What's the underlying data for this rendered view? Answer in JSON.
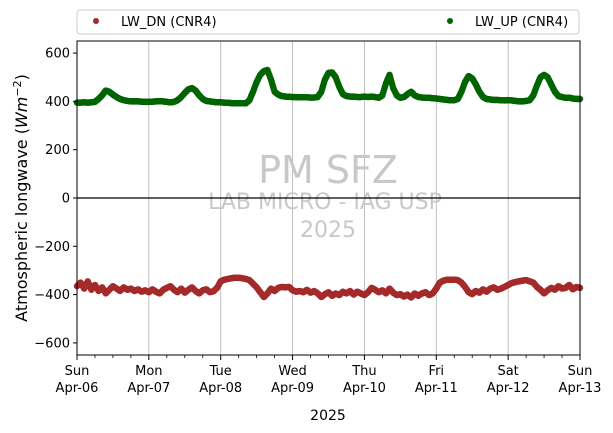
{
  "chart_data": {
    "type": "scatter",
    "ylabel": "Atmospheric longwave",
    "ylabel_unit_base": "W",
    "ylabel_unit_m": "m",
    "ylabel_unit_exp": "−2",
    "xlabel": "2025",
    "ylim": [
      -650,
      650
    ],
    "yticks": [
      600,
      400,
      200,
      0,
      -200,
      -400,
      -600
    ],
    "xlim": [
      0,
      7
    ],
    "xticks": [
      {
        "x": 0,
        "day": "Sun",
        "date": "Apr-06"
      },
      {
        "x": 1,
        "day": "Mon",
        "date": "Apr-07"
      },
      {
        "x": 2,
        "day": "Tue",
        "date": "Apr-08"
      },
      {
        "x": 3,
        "day": "Wed",
        "date": "Apr-09"
      },
      {
        "x": 4,
        "day": "Thu",
        "date": "Apr-10"
      },
      {
        "x": 5,
        "day": "Fri",
        "date": "Apr-11"
      },
      {
        "x": 6,
        "day": "Sat",
        "date": "Apr-12"
      },
      {
        "x": 7,
        "day": "Sun",
        "date": "Apr-13"
      }
    ],
    "grid": "vertical",
    "legend_placement": "top, above plot",
    "zero_line": true,
    "watermark": {
      "line1": "PM SFZ",
      "line2": "LAB MICRO - IAG USP",
      "line3": "2025"
    },
    "series": [
      {
        "name": "LW_DN (CNR4)",
        "color": "#a52a2a",
        "points": [
          [
            0.0,
            -365
          ],
          [
            0.05,
            -350
          ],
          [
            0.1,
            -375
          ],
          [
            0.15,
            -345
          ],
          [
            0.2,
            -380
          ],
          [
            0.25,
            -360
          ],
          [
            0.3,
            -385
          ],
          [
            0.35,
            -370
          ],
          [
            0.4,
            -395
          ],
          [
            0.45,
            -380
          ],
          [
            0.5,
            -365
          ],
          [
            0.55,
            -375
          ],
          [
            0.6,
            -385
          ],
          [
            0.65,
            -370
          ],
          [
            0.7,
            -380
          ],
          [
            0.75,
            -375
          ],
          [
            0.8,
            -385
          ],
          [
            0.85,
            -378
          ],
          [
            0.9,
            -388
          ],
          [
            0.95,
            -382
          ],
          [
            1.0,
            -390
          ],
          [
            1.05,
            -378
          ],
          [
            1.1,
            -388
          ],
          [
            1.15,
            -395
          ],
          [
            1.2,
            -380
          ],
          [
            1.25,
            -372
          ],
          [
            1.3,
            -365
          ],
          [
            1.35,
            -380
          ],
          [
            1.4,
            -390
          ],
          [
            1.45,
            -375
          ],
          [
            1.5,
            -392
          ],
          [
            1.55,
            -380
          ],
          [
            1.6,
            -370
          ],
          [
            1.65,
            -385
          ],
          [
            1.7,
            -395
          ],
          [
            1.75,
            -382
          ],
          [
            1.8,
            -378
          ],
          [
            1.85,
            -390
          ],
          [
            1.9,
            -386
          ],
          [
            1.95,
            -372
          ],
          [
            2.0,
            -345
          ],
          [
            2.05,
            -338
          ],
          [
            2.1,
            -335
          ],
          [
            2.15,
            -332
          ],
          [
            2.2,
            -330
          ],
          [
            2.25,
            -330
          ],
          [
            2.3,
            -332
          ],
          [
            2.35,
            -335
          ],
          [
            2.4,
            -340
          ],
          [
            2.45,
            -355
          ],
          [
            2.5,
            -370
          ],
          [
            2.55,
            -390
          ],
          [
            2.6,
            -410
          ],
          [
            2.65,
            -395
          ],
          [
            2.7,
            -375
          ],
          [
            2.75,
            -385
          ],
          [
            2.8,
            -372
          ],
          [
            2.85,
            -368
          ],
          [
            2.9,
            -370
          ],
          [
            2.95,
            -368
          ],
          [
            3.0,
            -382
          ],
          [
            3.05,
            -388
          ],
          [
            3.1,
            -385
          ],
          [
            3.15,
            -390
          ],
          [
            3.2,
            -380
          ],
          [
            3.25,
            -392
          ],
          [
            3.3,
            -385
          ],
          [
            3.35,
            -395
          ],
          [
            3.4,
            -410
          ],
          [
            3.45,
            -398
          ],
          [
            3.5,
            -390
          ],
          [
            3.55,
            -405
          ],
          [
            3.6,
            -395
          ],
          [
            3.65,
            -402
          ],
          [
            3.7,
            -388
          ],
          [
            3.75,
            -395
          ],
          [
            3.8,
            -385
          ],
          [
            3.85,
            -400
          ],
          [
            3.9,
            -388
          ],
          [
            3.95,
            -395
          ],
          [
            4.0,
            -402
          ],
          [
            4.05,
            -390
          ],
          [
            4.1,
            -372
          ],
          [
            4.15,
            -380
          ],
          [
            4.2,
            -390
          ],
          [
            4.25,
            -382
          ],
          [
            4.3,
            -395
          ],
          [
            4.35,
            -375
          ],
          [
            4.4,
            -392
          ],
          [
            4.45,
            -402
          ],
          [
            4.5,
            -398
          ],
          [
            4.55,
            -408
          ],
          [
            4.6,
            -400
          ],
          [
            4.65,
            -412
          ],
          [
            4.7,
            -395
          ],
          [
            4.75,
            -405
          ],
          [
            4.8,
            -395
          ],
          [
            4.85,
            -390
          ],
          [
            4.9,
            -402
          ],
          [
            4.95,
            -395
          ],
          [
            5.0,
            -375
          ],
          [
            5.05,
            -350
          ],
          [
            5.1,
            -342
          ],
          [
            5.15,
            -338
          ],
          [
            5.2,
            -338
          ],
          [
            5.25,
            -338
          ],
          [
            5.3,
            -340
          ],
          [
            5.35,
            -350
          ],
          [
            5.4,
            -368
          ],
          [
            5.45,
            -390
          ],
          [
            5.5,
            -398
          ],
          [
            5.55,
            -385
          ],
          [
            5.6,
            -392
          ],
          [
            5.65,
            -378
          ],
          [
            5.7,
            -388
          ],
          [
            5.75,
            -375
          ],
          [
            5.8,
            -370
          ],
          [
            5.85,
            -380
          ],
          [
            5.9,
            -375
          ],
          [
            5.95,
            -368
          ],
          [
            6.0,
            -360
          ],
          [
            6.05,
            -352
          ],
          [
            6.1,
            -348
          ],
          [
            6.15,
            -345
          ],
          [
            6.2,
            -342
          ],
          [
            6.25,
            -340
          ],
          [
            6.3,
            -345
          ],
          [
            6.35,
            -350
          ],
          [
            6.4,
            -368
          ],
          [
            6.45,
            -380
          ],
          [
            6.5,
            -395
          ],
          [
            6.55,
            -382
          ],
          [
            6.6,
            -372
          ],
          [
            6.65,
            -380
          ],
          [
            6.7,
            -365
          ],
          [
            6.75,
            -375
          ],
          [
            6.8,
            -372
          ],
          [
            6.85,
            -360
          ],
          [
            6.9,
            -378
          ],
          [
            6.95,
            -368
          ],
          [
            7.0,
            -372
          ]
        ]
      },
      {
        "name": "LW_UP (CNR4)",
        "color": "#006400",
        "points": [
          [
            0.0,
            395
          ],
          [
            0.05,
            395
          ],
          [
            0.1,
            396
          ],
          [
            0.15,
            395
          ],
          [
            0.2,
            396
          ],
          [
            0.25,
            398
          ],
          [
            0.3,
            410
          ],
          [
            0.35,
            425
          ],
          [
            0.4,
            445
          ],
          [
            0.45,
            440
          ],
          [
            0.5,
            428
          ],
          [
            0.55,
            418
          ],
          [
            0.6,
            410
          ],
          [
            0.65,
            405
          ],
          [
            0.7,
            402
          ],
          [
            0.75,
            400
          ],
          [
            0.8,
            400
          ],
          [
            0.85,
            400
          ],
          [
            0.9,
            399
          ],
          [
            0.95,
            398
          ],
          [
            1.0,
            398
          ],
          [
            1.05,
            399
          ],
          [
            1.1,
            400
          ],
          [
            1.15,
            401
          ],
          [
            1.2,
            400
          ],
          [
            1.25,
            398
          ],
          [
            1.3,
            396
          ],
          [
            1.35,
            398
          ],
          [
            1.4,
            405
          ],
          [
            1.45,
            418
          ],
          [
            1.5,
            435
          ],
          [
            1.55,
            450
          ],
          [
            1.6,
            455
          ],
          [
            1.65,
            445
          ],
          [
            1.7,
            425
          ],
          [
            1.75,
            410
          ],
          [
            1.8,
            402
          ],
          [
            1.85,
            400
          ],
          [
            1.9,
            398
          ],
          [
            1.95,
            396
          ],
          [
            2.0,
            396
          ],
          [
            2.05,
            395
          ],
          [
            2.1,
            394
          ],
          [
            2.15,
            393
          ],
          [
            2.2,
            392
          ],
          [
            2.25,
            392
          ],
          [
            2.3,
            392
          ],
          [
            2.35,
            392
          ],
          [
            2.4,
            405
          ],
          [
            2.45,
            440
          ],
          [
            2.5,
            480
          ],
          [
            2.55,
            510
          ],
          [
            2.6,
            525
          ],
          [
            2.65,
            530
          ],
          [
            2.7,
            490
          ],
          [
            2.75,
            440
          ],
          [
            2.8,
            428
          ],
          [
            2.85,
            422
          ],
          [
            2.9,
            420
          ],
          [
            2.95,
            419
          ],
          [
            3.0,
            418
          ],
          [
            3.05,
            418
          ],
          [
            3.1,
            417
          ],
          [
            3.15,
            417
          ],
          [
            3.2,
            417
          ],
          [
            3.25,
            416
          ],
          [
            3.3,
            416
          ],
          [
            3.35,
            418
          ],
          [
            3.4,
            440
          ],
          [
            3.45,
            490
          ],
          [
            3.5,
            518
          ],
          [
            3.55,
            520
          ],
          [
            3.6,
            500
          ],
          [
            3.65,
            460
          ],
          [
            3.7,
            430
          ],
          [
            3.75,
            422
          ],
          [
            3.8,
            420
          ],
          [
            3.85,
            420
          ],
          [
            3.9,
            418
          ],
          [
            3.95,
            418
          ],
          [
            4.0,
            420
          ],
          [
            4.05,
            418
          ],
          [
            4.1,
            420
          ],
          [
            4.15,
            418
          ],
          [
            4.2,
            415
          ],
          [
            4.25,
            425
          ],
          [
            4.3,
            475
          ],
          [
            4.35,
            510
          ],
          [
            4.4,
            455
          ],
          [
            4.45,
            425
          ],
          [
            4.5,
            415
          ],
          [
            4.55,
            418
          ],
          [
            4.6,
            430
          ],
          [
            4.65,
            440
          ],
          [
            4.7,
            425
          ],
          [
            4.75,
            418
          ],
          [
            4.8,
            416
          ],
          [
            4.85,
            415
          ],
          [
            4.9,
            415
          ],
          [
            4.95,
            413
          ],
          [
            5.0,
            412
          ],
          [
            5.05,
            410
          ],
          [
            5.1,
            408
          ],
          [
            5.15,
            406
          ],
          [
            5.2,
            405
          ],
          [
            5.25,
            405
          ],
          [
            5.3,
            410
          ],
          [
            5.35,
            440
          ],
          [
            5.4,
            480
          ],
          [
            5.45,
            505
          ],
          [
            5.5,
            495
          ],
          [
            5.55,
            470
          ],
          [
            5.6,
            440
          ],
          [
            5.65,
            418
          ],
          [
            5.7,
            410
          ],
          [
            5.75,
            408
          ],
          [
            5.8,
            406
          ],
          [
            5.85,
            406
          ],
          [
            5.9,
            405
          ],
          [
            5.95,
            404
          ],
          [
            6.0,
            405
          ],
          [
            6.05,
            404
          ],
          [
            6.1,
            402
          ],
          [
            6.15,
            400
          ],
          [
            6.2,
            400
          ],
          [
            6.25,
            402
          ],
          [
            6.3,
            405
          ],
          [
            6.35,
            425
          ],
          [
            6.4,
            465
          ],
          [
            6.45,
            500
          ],
          [
            6.5,
            510
          ],
          [
            6.55,
            500
          ],
          [
            6.6,
            470
          ],
          [
            6.65,
            440
          ],
          [
            6.7,
            422
          ],
          [
            6.75,
            418
          ],
          [
            6.8,
            415
          ],
          [
            6.85,
            415
          ],
          [
            6.9,
            412
          ],
          [
            6.95,
            410
          ],
          [
            7.0,
            410
          ]
        ]
      }
    ]
  }
}
